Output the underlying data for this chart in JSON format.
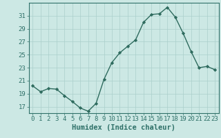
{
  "xlabel": "Humidex (Indice chaleur)",
  "x": [
    0,
    1,
    2,
    3,
    4,
    5,
    6,
    7,
    8,
    9,
    10,
    11,
    12,
    13,
    14,
    15,
    16,
    17,
    18,
    19,
    20,
    21,
    22,
    23
  ],
  "y": [
    20.2,
    19.3,
    19.8,
    19.7,
    18.7,
    17.8,
    16.8,
    16.3,
    17.5,
    21.2,
    23.8,
    25.3,
    26.3,
    27.3,
    30.0,
    31.2,
    31.3,
    32.3,
    30.8,
    28.3,
    25.5,
    23.0,
    23.2,
    22.7
  ],
  "line_color": "#2e6b5e",
  "marker": "D",
  "marker_size": 2.2,
  "bg_color": "#cce8e4",
  "grid_color": "#aacfcb",
  "axis_color": "#2e7068",
  "tick_color": "#2e7068",
  "ylim": [
    16.0,
    33.0
  ],
  "yticks": [
    17,
    19,
    21,
    23,
    25,
    27,
    29,
    31
  ],
  "xticks": [
    0,
    1,
    2,
    3,
    4,
    5,
    6,
    7,
    8,
    9,
    10,
    11,
    12,
    13,
    14,
    15,
    16,
    17,
    18,
    19,
    20,
    21,
    22,
    23
  ],
  "xlabel_fontsize": 7.5,
  "tick_fontsize": 6.5,
  "linewidth": 1.0
}
